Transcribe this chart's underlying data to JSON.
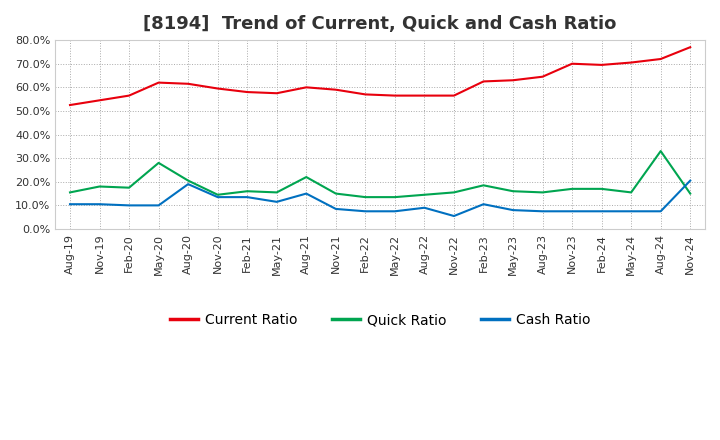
{
  "title": "[8194]  Trend of Current, Quick and Cash Ratio",
  "x_labels": [
    "Aug-19",
    "Nov-19",
    "Feb-20",
    "May-20",
    "Aug-20",
    "Nov-20",
    "Feb-21",
    "May-21",
    "Aug-21",
    "Nov-21",
    "Feb-22",
    "May-22",
    "Aug-22",
    "Nov-22",
    "Feb-23",
    "May-23",
    "Aug-23",
    "Nov-23",
    "Feb-24",
    "May-24",
    "Aug-24",
    "Nov-24"
  ],
  "current_ratio": [
    52.5,
    54.5,
    56.5,
    62.0,
    61.5,
    59.5,
    58.0,
    57.5,
    60.0,
    59.0,
    57.0,
    56.5,
    56.5,
    56.5,
    62.5,
    63.0,
    64.5,
    70.0,
    69.5,
    70.5,
    72.0,
    77.0
  ],
  "quick_ratio": [
    15.5,
    18.0,
    17.5,
    28.0,
    20.5,
    14.5,
    16.0,
    15.5,
    22.0,
    15.0,
    13.5,
    13.5,
    14.5,
    15.5,
    18.5,
    16.0,
    15.5,
    17.0,
    17.0,
    15.5,
    33.0,
    15.0
  ],
  "cash_ratio": [
    10.5,
    10.5,
    10.0,
    10.0,
    19.0,
    13.5,
    13.5,
    11.5,
    15.0,
    8.5,
    7.5,
    7.5,
    9.0,
    5.5,
    10.5,
    8.0,
    7.5,
    7.5,
    7.5,
    7.5,
    7.5,
    20.5
  ],
  "current_color": "#e8000d",
  "quick_color": "#00a550",
  "cash_color": "#0070c0",
  "ylim": [
    0.0,
    80.0
  ],
  "yticks": [
    0.0,
    10.0,
    20.0,
    30.0,
    40.0,
    50.0,
    60.0,
    70.0,
    80.0
  ],
  "background_color": "#ffffff",
  "plot_bg_color": "#ffffff",
  "grid_color": "#aaaaaa",
  "legend_labels": [
    "Current Ratio",
    "Quick Ratio",
    "Cash Ratio"
  ],
  "title_fontsize": 13,
  "axis_fontsize": 8,
  "legend_fontsize": 10
}
